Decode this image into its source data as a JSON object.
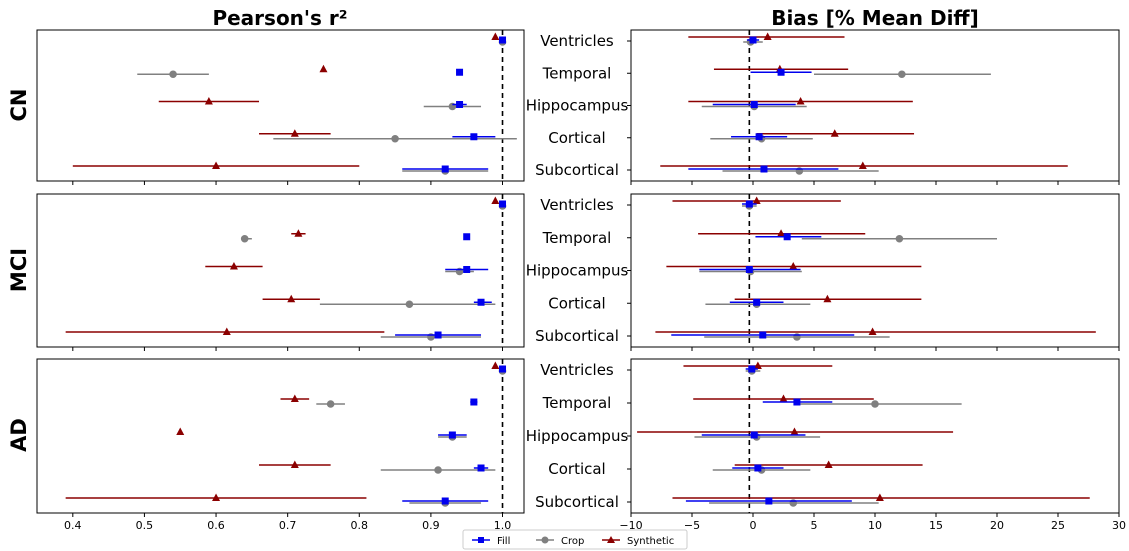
{
  "chart_data": {
    "type": "scatter",
    "subtype": "forest-plot with horizontal error bars",
    "categories": [
      "Ventricles",
      "Temporal",
      "Hippocampus",
      "Cortical",
      "Subcortical"
    ],
    "groups": [
      "CN",
      "MCI",
      "AD"
    ],
    "legend": {
      "placement": "bottom-center",
      "entries": [
        {
          "name": "Fill",
          "color": "#0000ee",
          "marker": "square"
        },
        {
          "name": "Crop",
          "color": "#808080",
          "marker": "circle"
        },
        {
          "name": "Synthetic",
          "color": "#8b0000",
          "marker": "triangle"
        }
      ]
    },
    "panels": [
      {
        "title": "Pearson's r²",
        "xlim": [
          0.35,
          1.03
        ],
        "xticks": [
          "0.4",
          "0.5",
          "0.6",
          "0.7",
          "0.8",
          "0.9",
          "1.0"
        ],
        "xtick_values": [
          0.4,
          0.5,
          0.6,
          0.7,
          0.8,
          0.9,
          1.0
        ],
        "ref_line": 1.0,
        "data": {
          "CN": {
            "Fill": [
              [
                1.0,
                0.995,
                1.0
              ],
              [
                0.94,
                0.94,
                0.94
              ],
              [
                0.94,
                0.93,
                0.95
              ],
              [
                0.96,
                0.93,
                0.99
              ],
              [
                0.92,
                0.86,
                0.98
              ]
            ],
            "Crop": [
              [
                1.0,
                0.995,
                1.0
              ],
              [
                0.54,
                0.49,
                0.59
              ],
              [
                0.93,
                0.89,
                0.97
              ],
              [
                0.85,
                0.68,
                1.02
              ],
              [
                0.92,
                0.86,
                0.98
              ]
            ],
            "Synthetic": [
              [
                0.99,
                0.99,
                0.99
              ],
              [
                0.75,
                0.75,
                0.75
              ],
              [
                0.59,
                0.52,
                0.66
              ],
              [
                0.71,
                0.66,
                0.76
              ],
              [
                0.6,
                0.4,
                0.8
              ]
            ]
          },
          "MCI": {
            "Fill": [
              [
                1.0,
                0.995,
                1.0
              ],
              [
                0.95,
                0.95,
                0.95
              ],
              [
                0.95,
                0.92,
                0.98
              ],
              [
                0.97,
                0.96,
                0.985
              ],
              [
                0.91,
                0.85,
                0.97
              ]
            ],
            "Crop": [
              [
                1.0,
                0.995,
                1.0
              ],
              [
                0.64,
                0.635,
                0.65
              ],
              [
                0.94,
                0.92,
                0.96
              ],
              [
                0.87,
                0.745,
                0.99
              ],
              [
                0.9,
                0.83,
                0.97
              ]
            ],
            "Synthetic": [
              [
                0.99,
                0.99,
                0.99
              ],
              [
                0.715,
                0.705,
                0.725
              ],
              [
                0.625,
                0.585,
                0.665
              ],
              [
                0.705,
                0.665,
                0.745
              ],
              [
                0.615,
                0.39,
                0.835
              ]
            ]
          },
          "AD": {
            "Fill": [
              [
                1.0,
                0.995,
                1.0
              ],
              [
                0.96,
                0.955,
                0.965
              ],
              [
                0.93,
                0.91,
                0.95
              ],
              [
                0.97,
                0.96,
                0.98
              ],
              [
                0.92,
                0.86,
                0.98
              ]
            ],
            "Crop": [
              [
                1.0,
                0.995,
                1.0
              ],
              [
                0.76,
                0.74,
                0.78
              ],
              [
                0.93,
                0.91,
                0.95
              ],
              [
                0.91,
                0.83,
                0.99
              ],
              [
                0.92,
                0.87,
                0.97
              ]
            ],
            "Synthetic": [
              [
                0.99,
                0.99,
                0.99
              ],
              [
                0.71,
                0.69,
                0.73
              ],
              [
                0.55,
                0.55,
                0.55
              ],
              [
                0.71,
                0.66,
                0.76
              ],
              [
                0.6,
                0.39,
                0.81
              ]
            ]
          }
        }
      },
      {
        "title": "Bias [% Mean Diff]",
        "xlim": [
          -10,
          30
        ],
        "xticks": [
          "−10",
          "−5",
          "0",
          "5",
          "10",
          "15",
          "20",
          "25",
          "30"
        ],
        "xtick_values": [
          -10,
          -5,
          0,
          5,
          10,
          15,
          20,
          25,
          30
        ],
        "ref_line": -0.3,
        "data": {
          "CN": {
            "Fill": [
              [
                0.0,
                -0.5,
                0.5
              ],
              [
                2.3,
                -0.2,
                4.8
              ],
              [
                0.1,
                -3.3,
                3.5
              ],
              [
                0.5,
                -1.8,
                2.8
              ],
              [
                0.9,
                -5.3,
                7.0
              ]
            ],
            "Crop": [
              [
                -0.2,
                -0.8,
                0.8
              ],
              [
                12.2,
                5.0,
                19.5
              ],
              [
                0.1,
                -4.2,
                4.4
              ],
              [
                0.7,
                -3.5,
                4.9
              ],
              [
                3.8,
                -2.5,
                10.3
              ]
            ],
            "Synthetic": [
              [
                1.2,
                -5.3,
                7.5
              ],
              [
                2.2,
                -3.2,
                7.8
              ],
              [
                3.9,
                -5.3,
                13.1
              ],
              [
                6.7,
                0.3,
                13.2
              ],
              [
                9.0,
                -7.6,
                25.8
              ]
            ]
          },
          "MCI": {
            "Fill": [
              [
                -0.3,
                -0.9,
                0.3
              ],
              [
                2.8,
                0.2,
                5.6
              ],
              [
                -0.3,
                -4.4,
                3.9
              ],
              [
                0.3,
                -1.9,
                2.5
              ],
              [
                0.8,
                -6.7,
                8.3
              ]
            ],
            "Crop": [
              [
                -0.3,
                -0.9,
                0.3
              ],
              [
                12.0,
                4.0,
                20.0
              ],
              [
                -0.2,
                -4.4,
                4.0
              ],
              [
                0.3,
                -3.9,
                4.7
              ],
              [
                3.6,
                -4.0,
                11.2
              ]
            ],
            "Synthetic": [
              [
                0.3,
                -6.6,
                7.2
              ],
              [
                2.3,
                -4.5,
                9.2
              ],
              [
                3.3,
                -7.1,
                13.8
              ],
              [
                6.1,
                -1.5,
                13.8
              ],
              [
                9.8,
                -8.0,
                28.1
              ]
            ]
          },
          "AD": {
            "Fill": [
              [
                -0.1,
                -0.6,
                0.4
              ],
              [
                3.6,
                0.8,
                6.5
              ],
              [
                0.1,
                -4.2,
                4.3
              ],
              [
                0.4,
                -1.7,
                2.5
              ],
              [
                1.3,
                -5.5,
                8.1
              ]
            ],
            "Crop": [
              [
                -0.1,
                -0.6,
                0.6
              ],
              [
                10.0,
                3.4,
                17.1
              ],
              [
                0.3,
                -4.8,
                5.5
              ],
              [
                0.7,
                -3.3,
                4.7
              ],
              [
                3.3,
                -3.6,
                10.3
              ]
            ],
            "Synthetic": [
              [
                0.4,
                -5.7,
                6.5
              ],
              [
                2.5,
                -4.9,
                9.9
              ],
              [
                3.4,
                -9.5,
                16.4
              ],
              [
                6.2,
                -1.5,
                13.9
              ],
              [
                10.4,
                -6.6,
                27.6
              ]
            ]
          }
        }
      }
    ]
  }
}
